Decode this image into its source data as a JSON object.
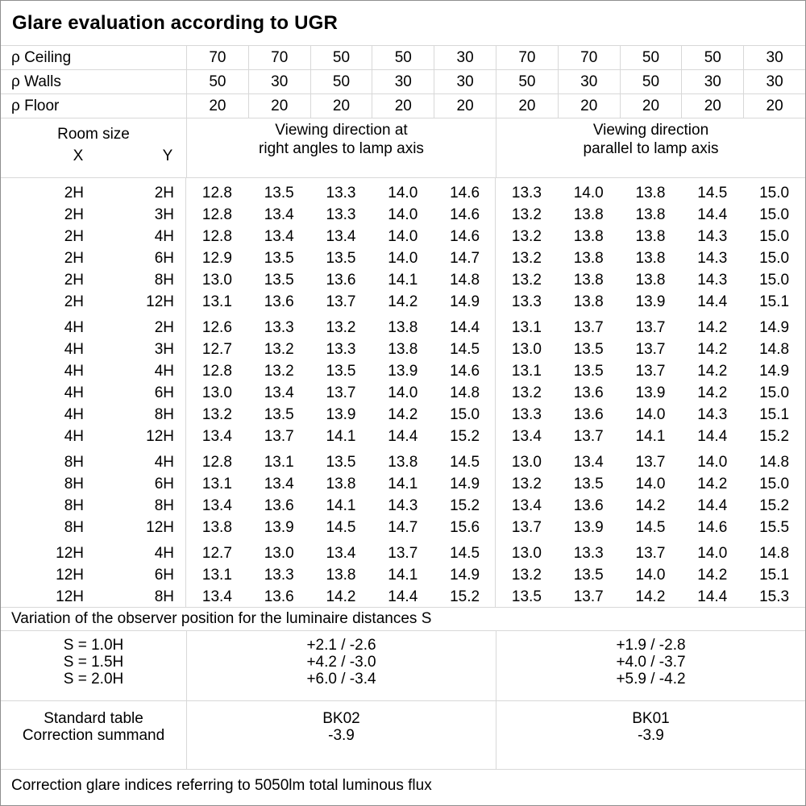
{
  "title": "Glare evaluation according to UGR",
  "reflectance": {
    "rows": [
      {
        "label": "ρ Ceiling",
        "values": [
          "70",
          "70",
          "50",
          "50",
          "30",
          "70",
          "70",
          "50",
          "50",
          "30"
        ]
      },
      {
        "label": "ρ Walls",
        "values": [
          "50",
          "30",
          "50",
          "30",
          "30",
          "50",
          "30",
          "50",
          "30",
          "30"
        ]
      },
      {
        "label": "ρ Floor",
        "values": [
          "20",
          "20",
          "20",
          "20",
          "20",
          "20",
          "20",
          "20",
          "20",
          "20"
        ]
      }
    ]
  },
  "header": {
    "room_size": "Room size",
    "x": "X",
    "y": "Y",
    "group1_line1": "Viewing direction at",
    "group1_line2": "right angles to lamp axis",
    "group2_line1": "Viewing direction",
    "group2_line2": "parallel to lamp axis"
  },
  "blocks": [
    {
      "rows": [
        {
          "x": "2H",
          "y": "2H",
          "left": [
            "12.8",
            "13.5",
            "13.3",
            "14.0",
            "14.6"
          ],
          "right": [
            "13.3",
            "14.0",
            "13.8",
            "14.5",
            "15.0"
          ]
        },
        {
          "x": "2H",
          "y": "3H",
          "left": [
            "12.8",
            "13.4",
            "13.3",
            "14.0",
            "14.6"
          ],
          "right": [
            "13.2",
            "13.8",
            "13.8",
            "14.4",
            "15.0"
          ]
        },
        {
          "x": "2H",
          "y": "4H",
          "left": [
            "12.8",
            "13.4",
            "13.4",
            "14.0",
            "14.6"
          ],
          "right": [
            "13.2",
            "13.8",
            "13.8",
            "14.3",
            "15.0"
          ]
        },
        {
          "x": "2H",
          "y": "6H",
          "left": [
            "12.9",
            "13.5",
            "13.5",
            "14.0",
            "14.7"
          ],
          "right": [
            "13.2",
            "13.8",
            "13.8",
            "14.3",
            "15.0"
          ]
        },
        {
          "x": "2H",
          "y": "8H",
          "left": [
            "13.0",
            "13.5",
            "13.6",
            "14.1",
            "14.8"
          ],
          "right": [
            "13.2",
            "13.8",
            "13.8",
            "14.3",
            "15.0"
          ]
        },
        {
          "x": "2H",
          "y": "12H",
          "left": [
            "13.1",
            "13.6",
            "13.7",
            "14.2",
            "14.9"
          ],
          "right": [
            "13.3",
            "13.8",
            "13.9",
            "14.4",
            "15.1"
          ]
        }
      ]
    },
    {
      "rows": [
        {
          "x": "4H",
          "y": "2H",
          "left": [
            "12.6",
            "13.3",
            "13.2",
            "13.8",
            "14.4"
          ],
          "right": [
            "13.1",
            "13.7",
            "13.7",
            "14.2",
            "14.9"
          ]
        },
        {
          "x": "4H",
          "y": "3H",
          "left": [
            "12.7",
            "13.2",
            "13.3",
            "13.8",
            "14.5"
          ],
          "right": [
            "13.0",
            "13.5",
            "13.7",
            "14.2",
            "14.8"
          ]
        },
        {
          "x": "4H",
          "y": "4H",
          "left": [
            "12.8",
            "13.2",
            "13.5",
            "13.9",
            "14.6"
          ],
          "right": [
            "13.1",
            "13.5",
            "13.7",
            "14.2",
            "14.9"
          ]
        },
        {
          "x": "4H",
          "y": "6H",
          "left": [
            "13.0",
            "13.4",
            "13.7",
            "14.0",
            "14.8"
          ],
          "right": [
            "13.2",
            "13.6",
            "13.9",
            "14.2",
            "15.0"
          ]
        },
        {
          "x": "4H",
          "y": "8H",
          "left": [
            "13.2",
            "13.5",
            "13.9",
            "14.2",
            "15.0"
          ],
          "right": [
            "13.3",
            "13.6",
            "14.0",
            "14.3",
            "15.1"
          ]
        },
        {
          "x": "4H",
          "y": "12H",
          "left": [
            "13.4",
            "13.7",
            "14.1",
            "14.4",
            "15.2"
          ],
          "right": [
            "13.4",
            "13.7",
            "14.1",
            "14.4",
            "15.2"
          ]
        }
      ]
    },
    {
      "rows": [
        {
          "x": "8H",
          "y": "4H",
          "left": [
            "12.8",
            "13.1",
            "13.5",
            "13.8",
            "14.5"
          ],
          "right": [
            "13.0",
            "13.4",
            "13.7",
            "14.0",
            "14.8"
          ]
        },
        {
          "x": "8H",
          "y": "6H",
          "left": [
            "13.1",
            "13.4",
            "13.8",
            "14.1",
            "14.9"
          ],
          "right": [
            "13.2",
            "13.5",
            "14.0",
            "14.2",
            "15.0"
          ]
        },
        {
          "x": "8H",
          "y": "8H",
          "left": [
            "13.4",
            "13.6",
            "14.1",
            "14.3",
            "15.2"
          ],
          "right": [
            "13.4",
            "13.6",
            "14.2",
            "14.4",
            "15.2"
          ]
        },
        {
          "x": "8H",
          "y": "12H",
          "left": [
            "13.8",
            "13.9",
            "14.5",
            "14.7",
            "15.6"
          ],
          "right": [
            "13.7",
            "13.9",
            "14.5",
            "14.6",
            "15.5"
          ]
        }
      ]
    },
    {
      "rows": [
        {
          "x": "12H",
          "y": "4H",
          "left": [
            "12.7",
            "13.0",
            "13.4",
            "13.7",
            "14.5"
          ],
          "right": [
            "13.0",
            "13.3",
            "13.7",
            "14.0",
            "14.8"
          ]
        },
        {
          "x": "12H",
          "y": "6H",
          "left": [
            "13.1",
            "13.3",
            "13.8",
            "14.1",
            "14.9"
          ],
          "right": [
            "13.2",
            "13.5",
            "14.0",
            "14.2",
            "15.1"
          ]
        },
        {
          "x": "12H",
          "y": "8H",
          "left": [
            "13.4",
            "13.6",
            "14.2",
            "14.4",
            "15.2"
          ],
          "right": [
            "13.5",
            "13.7",
            "14.2",
            "14.4",
            "15.3"
          ]
        }
      ]
    }
  ],
  "variation": {
    "note": "Variation of the observer position for the luminaire distances S",
    "s_labels": [
      "S = 1.0H",
      "S = 1.5H",
      "S = 2.0H"
    ],
    "left_values": [
      "+2.1 / -2.6",
      "+4.2 / -3.0",
      "+6.0 / -3.4"
    ],
    "right_values": [
      "+1.9 / -2.8",
      "+4.0 / -3.7",
      "+5.9 / -4.2"
    ]
  },
  "standard": {
    "labels": [
      "Standard table",
      "Correction summand"
    ],
    "left": [
      "BK02",
      "-3.9"
    ],
    "right": [
      "BK01",
      "-3.9"
    ]
  },
  "footer": "Correction glare indices referring to 5050lm total luminous flux"
}
